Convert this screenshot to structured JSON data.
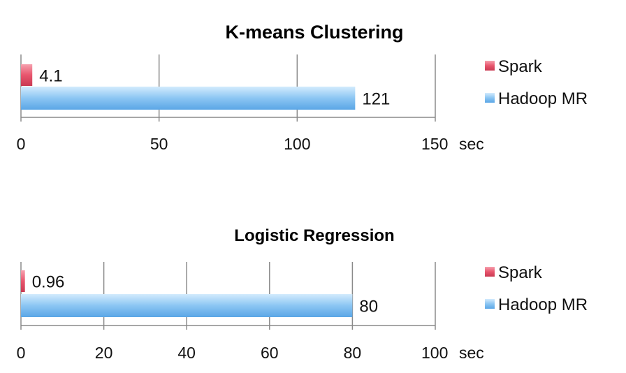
{
  "chart_data": [
    {
      "type": "bar",
      "orientation": "horizontal",
      "title": "K-means Clustering",
      "unit_label": "sec",
      "xlim": [
        0,
        150
      ],
      "ticks": [
        0,
        50,
        100,
        150
      ],
      "tick_labels": [
        "0",
        "50",
        "100",
        "150"
      ],
      "grid": true,
      "legend_position": "right",
      "series": [
        {
          "name": "Spark",
          "value": 4.1,
          "label": "4.1",
          "color": "#e8566e"
        },
        {
          "name": "Hadoop MR",
          "value": 121,
          "label": "121",
          "color": "#7fbef0"
        }
      ]
    },
    {
      "type": "bar",
      "orientation": "horizontal",
      "title": "Logistic Regression",
      "unit_label": "sec",
      "xlim": [
        0,
        100
      ],
      "ticks": [
        0,
        20,
        40,
        60,
        80,
        100
      ],
      "tick_labels": [
        "0",
        "20",
        "40",
        "60",
        "80",
        "100"
      ],
      "grid": true,
      "legend_position": "right",
      "series": [
        {
          "name": "Spark",
          "value": 0.96,
          "label": "0.96",
          "color": "#e8566e"
        },
        {
          "name": "Hadoop MR",
          "value": 80,
          "label": "80",
          "color": "#7fbef0"
        }
      ]
    }
  ]
}
